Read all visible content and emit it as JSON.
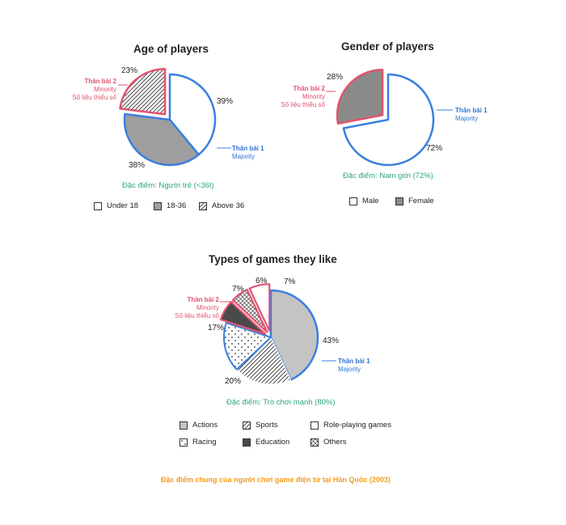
{
  "chart_data": [
    {
      "type": "pie",
      "title": "Age of players",
      "slices": [
        {
          "label": "Under 18",
          "value": 39,
          "text": "39%"
        },
        {
          "label": "18-36",
          "value": 38,
          "text": "38%"
        },
        {
          "label": "Above 36",
          "value": 23,
          "text": "23%"
        }
      ],
      "minority": {
        "title": "Thân bài 2",
        "line1": "Minority",
        "line2": "Số liệu thiểu số"
      },
      "majority": {
        "title": "Thân bài 1",
        "line1": "Majority"
      },
      "feature": "Đặc điểm: Người trẻ (<36t)",
      "legend": [
        "Under 18",
        "18-36",
        "Above 36"
      ]
    },
    {
      "type": "pie",
      "title": "Gender of players",
      "slices": [
        {
          "label": "Male",
          "value": 72,
          "text": "72%"
        },
        {
          "label": "Female",
          "value": 28,
          "text": "28%"
        }
      ],
      "minority": {
        "title": "Thân bài 2",
        "line1": "Minority",
        "line2": "Số liệu thiểu số"
      },
      "majority": {
        "title": "Thân bài 1",
        "line1": "Majority"
      },
      "feature": "Đặc điểm: Nam giới (72%)",
      "legend": [
        "Male",
        "Female"
      ]
    },
    {
      "type": "pie",
      "title": "Types of games they like",
      "slices": [
        {
          "label": "Actions",
          "value": 43,
          "text": "43%"
        },
        {
          "label": "Sports",
          "value": 20,
          "text": "20%"
        },
        {
          "label": "Racing",
          "value": 17,
          "text": "17%"
        },
        {
          "label": "Education",
          "value": 7,
          "text": "7%"
        },
        {
          "label": "Others",
          "value": 6,
          "text": "6%"
        },
        {
          "label": "Role-playing games",
          "value": 7,
          "text": "7%"
        }
      ],
      "minority": {
        "title": "Thân bài 2",
        "line1": "Minority",
        "line2": "Số liệu thiểu số"
      },
      "majority": {
        "title": "Thân bài 1",
        "line1": "Majority"
      },
      "feature": "Đặc điểm: Trò chơi mạnh (80%)",
      "legend": [
        "Actions",
        "Sports",
        "Role-playing games",
        "Racing",
        "Education",
        "Others"
      ]
    }
  ],
  "colors": {
    "majority_outline": "#3a7fe0",
    "minority_outline": "#e0546f",
    "feature_text": "#2aa67b",
    "footer_text": "#f29c1f",
    "gray": "#9e9e9e",
    "light_gray": "#c4c4c4",
    "dark_gray": "#4a4a4a"
  },
  "footer": "Đặc điểm chung của người chơi game điện tử tại Hàn Quốc (2003)"
}
